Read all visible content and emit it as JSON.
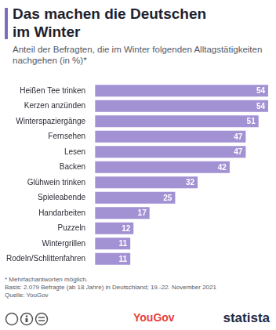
{
  "chart_data": {
    "type": "bar",
    "orientation": "horizontal",
    "title": "Das machen die Deutschen im Winter",
    "subtitle": "Anteil der Befragten, die im Winter folgenden Alltagstätigkeiten nachgehen (in %)*",
    "categories": [
      "Heißen Tee trinken",
      "Kerzen anzünden",
      "Winterspaziergänge",
      "Fernsehen",
      "Lesen",
      "Backen",
      "Glühwein trinken",
      "Spieleabende",
      "Handarbeiten",
      "Puzzeln",
      "Wintergrillen",
      "Rodeln/Schlittenfahren"
    ],
    "values": [
      54,
      54,
      51,
      47,
      47,
      42,
      32,
      25,
      17,
      12,
      11,
      11
    ],
    "color": "#a291d3",
    "xlim": [
      0,
      54
    ],
    "grid": false,
    "data_labels": true,
    "tick_labels": "y",
    "footnotes": [
      "* Mehrfachantworten möglich.",
      "Basis: 2.079 Befragte (ab 18 Jahre) in Deutschland; 19.-22. November 2021",
      "Quelle: YouGov"
    ],
    "logos": [
      "YouGov",
      "statista"
    ]
  }
}
